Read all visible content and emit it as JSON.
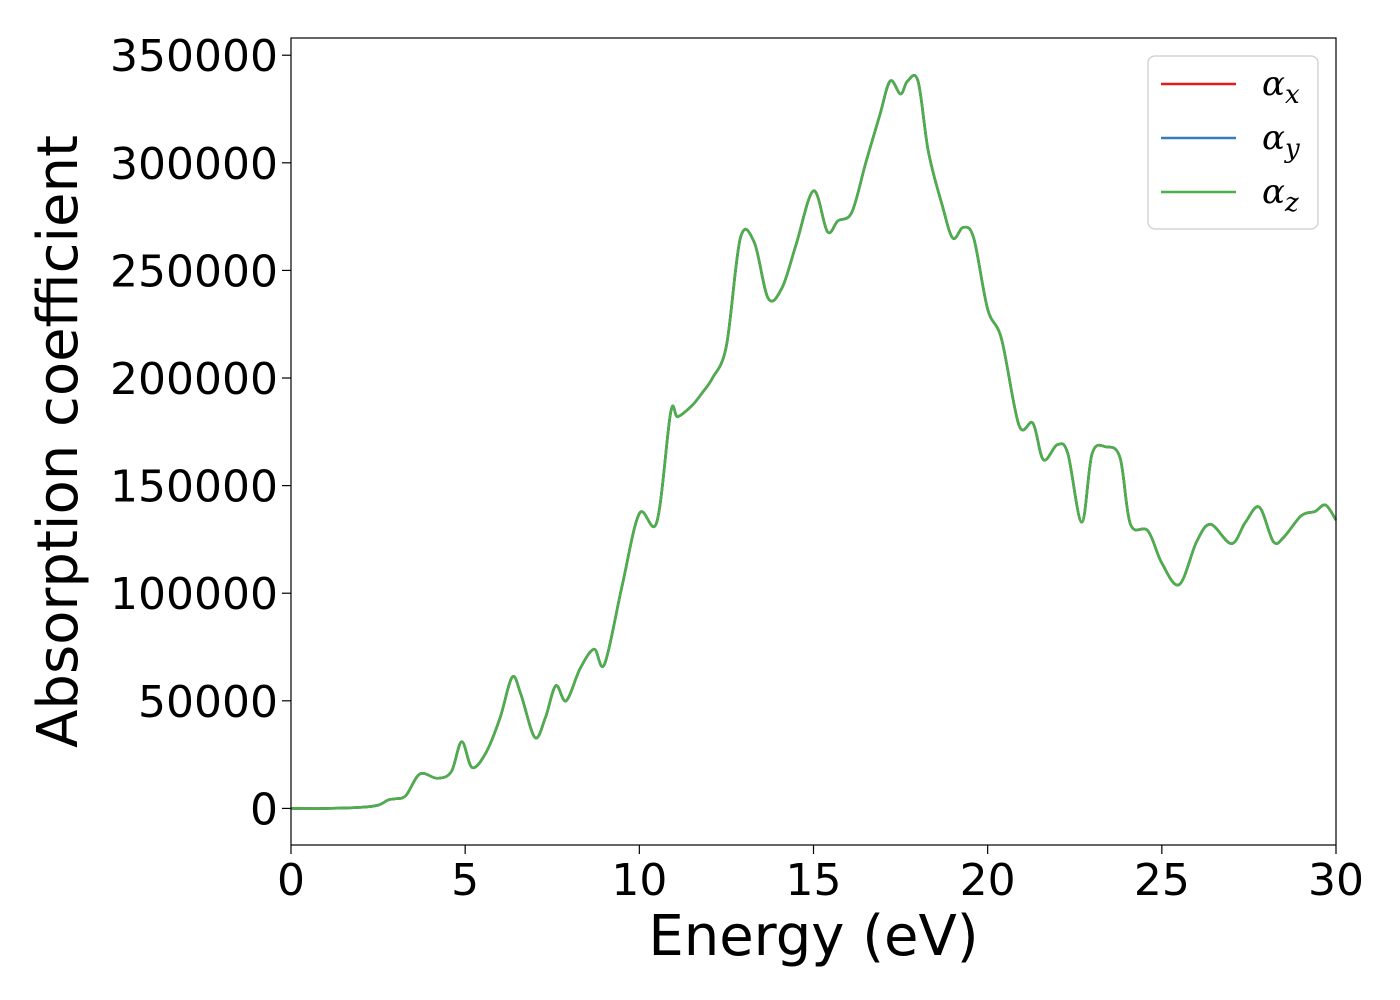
{
  "chart_data": {
    "type": "line",
    "title": "",
    "xlabel": "Energy (eV)",
    "ylabel": "Absorption coefficient",
    "xlim": [
      0,
      30
    ],
    "ylim": [
      -17000,
      358000
    ],
    "x_ticks": [
      0,
      5,
      10,
      15,
      20,
      25,
      30
    ],
    "y_ticks": [
      0,
      50000,
      100000,
      150000,
      200000,
      250000,
      300000,
      350000
    ],
    "grid": false,
    "legend_position": "top-right",
    "x": [
      0,
      1,
      2,
      2.5,
      2.8,
      3.0,
      3.3,
      3.7,
      4.2,
      4.6,
      4.9,
      5.2,
      5.6,
      6.0,
      6.35,
      6.6,
      7.0,
      7.3,
      7.6,
      7.9,
      8.3,
      8.7,
      9.0,
      9.5,
      10.0,
      10.5,
      10.9,
      11.1,
      11.5,
      11.8,
      12.1,
      12.5,
      12.9,
      13.3,
      13.7,
      14.1,
      14.5,
      15.0,
      15.4,
      15.7,
      16.1,
      16.5,
      16.9,
      17.2,
      17.5,
      17.7,
      18.0,
      18.3,
      18.7,
      19.0,
      19.3,
      19.6,
      20.0,
      20.4,
      20.9,
      21.3,
      21.6,
      22.0,
      22.3,
      22.7,
      23.0,
      23.4,
      23.8,
      24.1,
      24.6,
      25.0,
      25.5,
      26.0,
      26.4,
      27.0,
      27.4,
      27.8,
      28.2,
      28.5,
      29.0,
      29.4,
      29.7,
      30.0
    ],
    "series": [
      {
        "name": "x",
        "color": "#e41a1c",
        "values": [
          0,
          0,
          500,
          1500,
          4000,
          4500,
          6000,
          16000,
          14000,
          17000,
          31000,
          19000,
          26000,
          42000,
          61000,
          53000,
          33000,
          42000,
          57000,
          50000,
          65000,
          74000,
          67000,
          103000,
          137000,
          133000,
          184000,
          182000,
          187000,
          193000,
          200000,
          215000,
          265000,
          263000,
          237000,
          242000,
          262000,
          287000,
          268000,
          273000,
          277000,
          300000,
          322000,
          338000,
          332000,
          338000,
          338000,
          305000,
          280000,
          265000,
          270000,
          265000,
          232000,
          218000,
          178000,
          179000,
          162000,
          169000,
          165000,
          133000,
          165000,
          168000,
          163000,
          132000,
          129000,
          114000,
          104000,
          124000,
          132000,
          123000,
          133000,
          140000,
          124000,
          126000,
          136000,
          138000,
          141000,
          134000
        ]
      },
      {
        "name": "y",
        "color": "#377eb8",
        "values": [
          0,
          0,
          500,
          1500,
          4000,
          4500,
          6000,
          16000,
          14000,
          17000,
          31000,
          19000,
          26000,
          42000,
          61000,
          53000,
          33000,
          42000,
          57000,
          50000,
          65000,
          74000,
          67000,
          103000,
          137000,
          133000,
          184000,
          182000,
          187000,
          193000,
          200000,
          215000,
          265000,
          263000,
          237000,
          242000,
          262000,
          287000,
          268000,
          273000,
          277000,
          300000,
          322000,
          338000,
          332000,
          338000,
          338000,
          305000,
          280000,
          265000,
          270000,
          265000,
          232000,
          218000,
          178000,
          179000,
          162000,
          169000,
          165000,
          133000,
          165000,
          168000,
          163000,
          132000,
          129000,
          114000,
          104000,
          124000,
          132000,
          123000,
          133000,
          140000,
          124000,
          126000,
          136000,
          138000,
          141000,
          134000
        ]
      },
      {
        "name": "z",
        "color": "#4daf4a",
        "values": [
          0,
          0,
          500,
          1500,
          4000,
          4500,
          6000,
          16000,
          14000,
          17000,
          31000,
          19000,
          26000,
          42000,
          61000,
          53000,
          33000,
          42000,
          57000,
          50000,
          65000,
          74000,
          67000,
          103000,
          137000,
          133000,
          184000,
          182000,
          187000,
          193000,
          200000,
          215000,
          265000,
          263000,
          237000,
          242000,
          262000,
          287000,
          268000,
          273000,
          277000,
          300000,
          322000,
          338000,
          332000,
          338000,
          338000,
          305000,
          280000,
          265000,
          270000,
          265000,
          232000,
          218000,
          178000,
          179000,
          162000,
          169000,
          165000,
          133000,
          165000,
          168000,
          163000,
          132000,
          129000,
          114000,
          104000,
          124000,
          132000,
          123000,
          133000,
          140000,
          124000,
          126000,
          136000,
          138000,
          141000,
          134000
        ]
      }
    ],
    "legend": [
      {
        "symbol": "α",
        "sub": "x",
        "color": "#e41a1c"
      },
      {
        "symbol": "α",
        "sub": "y",
        "color": "#377eb8"
      },
      {
        "symbol": "α",
        "sub": "z",
        "color": "#4daf4a"
      }
    ]
  }
}
